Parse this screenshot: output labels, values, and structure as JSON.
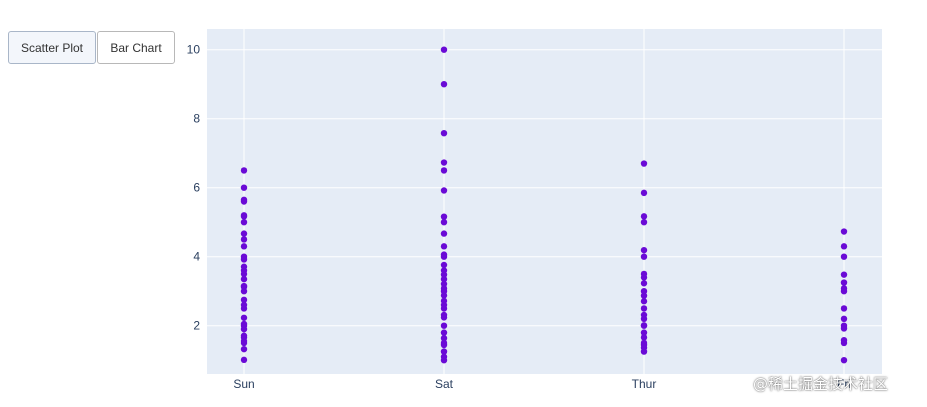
{
  "toolbar": {
    "scatter_label": "Scatter Plot",
    "bar_label": "Bar Chart"
  },
  "watermark": "@稀土掘金技术社区",
  "colors": {
    "plot_background": "#e5ecf6",
    "grid": "#ffffff",
    "marker": "#6a0ad6",
    "tick_text": "#2a3f5f"
  },
  "chart_data": {
    "type": "scatter",
    "title": "",
    "xlabel": "",
    "ylabel": "",
    "categories": [
      "Sun",
      "Sat",
      "Thur",
      "Fri"
    ],
    "ylim": [
      0.6,
      10.6
    ],
    "yticks": [
      2,
      4,
      6,
      8,
      10
    ],
    "grid": true,
    "legend": "none",
    "points": {
      "Sun": [
        1.01,
        1.32,
        1.5,
        1.56,
        1.66,
        1.71,
        1.9,
        2.0,
        2.05,
        2.23,
        2.5,
        2.6,
        2.75,
        3.0,
        3.12,
        3.15,
        3.35,
        3.5,
        3.6,
        3.71,
        3.92,
        4.0,
        4.3,
        4.5,
        4.67,
        5.0,
        5.17,
        5.2,
        5.6,
        5.65,
        6.0,
        6.5
      ],
      "Sat": [
        1.0,
        1.1,
        1.25,
        1.44,
        1.5,
        1.64,
        1.8,
        2.0,
        2.24,
        2.31,
        2.5,
        2.6,
        2.72,
        2.88,
        3.0,
        3.08,
        3.21,
        3.35,
        3.48,
        3.6,
        3.76,
        4.0,
        4.06,
        4.3,
        4.67,
        5.0,
        5.16,
        5.92,
        6.5,
        6.73,
        7.58,
        9.0,
        10.0
      ],
      "Thur": [
        1.25,
        1.36,
        1.44,
        1.5,
        1.66,
        1.8,
        2.0,
        2.01,
        2.2,
        2.31,
        2.5,
        2.71,
        2.87,
        3.0,
        3.23,
        3.4,
        3.5,
        4.0,
        4.19,
        5.0,
        5.17,
        5.85,
        6.7
      ],
      "Fri": [
        1.0,
        1.5,
        1.58,
        1.92,
        2.0,
        2.2,
        2.5,
        3.0,
        3.08,
        3.25,
        3.48,
        4.0,
        4.3,
        4.73
      ]
    }
  }
}
